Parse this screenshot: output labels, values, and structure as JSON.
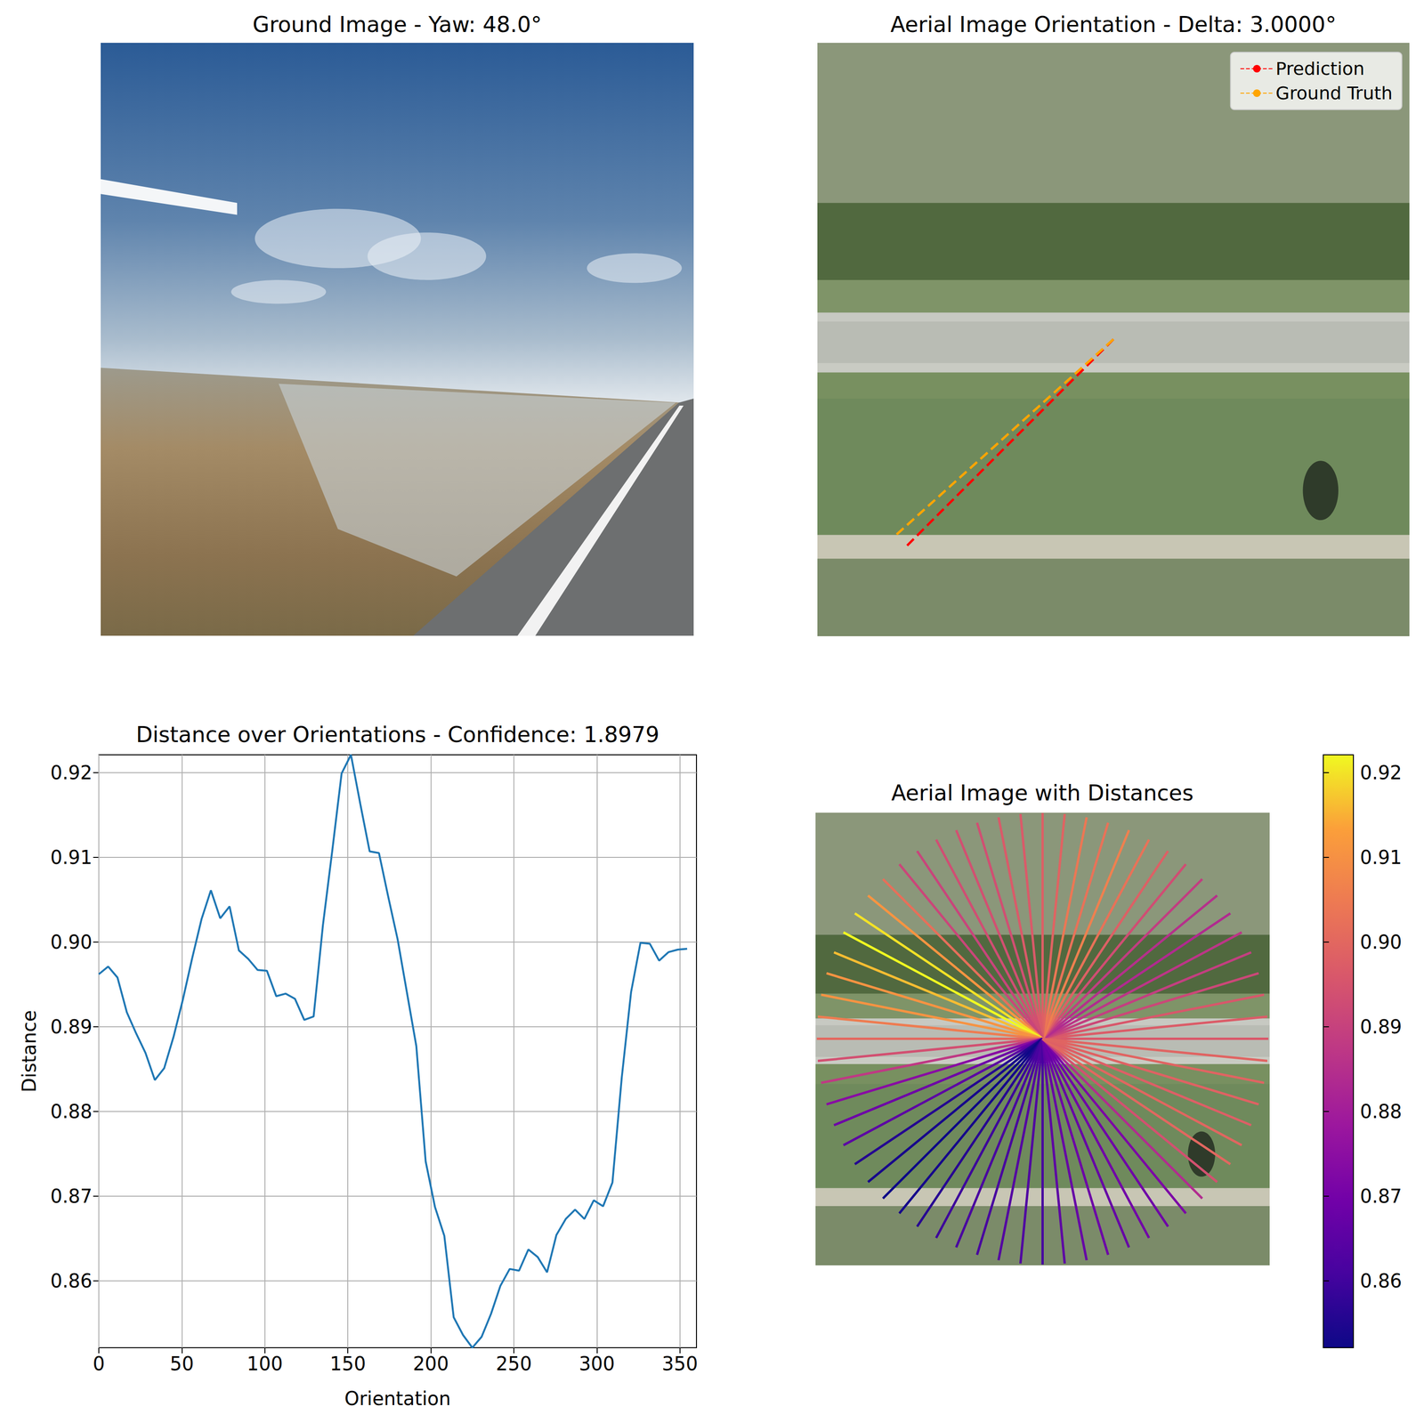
{
  "chart_data": [
    {
      "type": "image",
      "title": "Ground Image - Yaw: 48.0°"
    },
    {
      "type": "polar_line",
      "title": "Aerial Image Orientation - Delta: 3.0000°",
      "legend": "upper right",
      "series": [
        {
          "name": "Prediction",
          "color": "#ff0000",
          "line_style": "dashed",
          "values": [
            225
          ]
        },
        {
          "name": "Ground Truth",
          "color": "#ffa500",
          "line_style": "dashed",
          "values": [
            222
          ]
        }
      ]
    },
    {
      "type": "line",
      "title": "Distance over Orientations - Confidence: 1.8979",
      "xlabel": "Orientation",
      "ylabel": "Distance",
      "color": "#1f77b4",
      "grid": true,
      "xlim": [
        0,
        360
      ],
      "ylim": [
        0.8521,
        0.9221
      ],
      "xticks": [
        0,
        50,
        100,
        150,
        200,
        250,
        300,
        350
      ],
      "yticks": [
        0.86,
        0.87,
        0.88,
        0.89,
        {
          "value": 0.9,
          "label": "0.90"
        },
        0.91,
        0.92
      ],
      "x": [
        0,
        5.625,
        11.25,
        16.875,
        22.5,
        28.125,
        33.75,
        39.375,
        45,
        50.625,
        56.25,
        61.875,
        67.5,
        73.125,
        78.75,
        84.375,
        90,
        95.625,
        101.25,
        106.875,
        112.5,
        118.125,
        123.75,
        129.375,
        135,
        140.625,
        146.25,
        151.875,
        157.5,
        163.125,
        168.75,
        174.375,
        180,
        185.625,
        191.25,
        196.875,
        202.5,
        208.125,
        213.75,
        219.375,
        225,
        230.625,
        236.25,
        241.875,
        247.5,
        253.125,
        258.75,
        264.375,
        270,
        275.625,
        281.25,
        286.875,
        292.5,
        298.125,
        303.75,
        309.375,
        315,
        320.625,
        326.25,
        331.875,
        337.5,
        343.125,
        348.75,
        354.375
      ],
      "values": [
        0.8962,
        0.8971,
        0.8958,
        0.8917,
        0.8892,
        0.8869,
        0.8837,
        0.8851,
        0.8888,
        0.8932,
        0.8981,
        0.9027,
        0.9061,
        0.9028,
        0.9042,
        0.899,
        0.898,
        0.8967,
        0.8966,
        0.8936,
        0.8939,
        0.8933,
        0.8908,
        0.8912,
        0.902,
        0.9108,
        0.9199,
        0.9221,
        0.9163,
        0.9107,
        0.9105,
        0.9053,
        0.9003,
        0.894,
        0.8877,
        0.8741,
        0.8687,
        0.8653,
        0.8557,
        0.8536,
        0.8521,
        0.8534,
        0.8561,
        0.8594,
        0.8614,
        0.8612,
        0.8637,
        0.8628,
        0.861,
        0.8654,
        0.8673,
        0.8684,
        0.8673,
        0.8695,
        0.8688,
        0.8716,
        0.884,
        0.8941,
        0.8999,
        0.8998,
        0.8978,
        0.8988,
        0.8991,
        0.8992
      ]
    },
    {
      "type": "radial",
      "title": "Aerial Image with Distances",
      "colorbar_range": [
        0.8521,
        0.9221
      ],
      "colorbar_ticks": [
        0.86,
        0.87,
        0.88,
        0.89,
        {
          "value": 0.9,
          "label": "0.90"
        },
        0.91,
        0.92
      ],
      "x": [
        0,
        5.625,
        11.25,
        16.875,
        22.5,
        28.125,
        33.75,
        39.375,
        45,
        50.625,
        56.25,
        61.875,
        67.5,
        73.125,
        78.75,
        84.375,
        90,
        95.625,
        101.25,
        106.875,
        112.5,
        118.125,
        123.75,
        129.375,
        135,
        140.625,
        146.25,
        151.875,
        157.5,
        163.125,
        168.75,
        174.375,
        180,
        185.625,
        191.25,
        196.875,
        202.5,
        208.125,
        213.75,
        219.375,
        225,
        230.625,
        236.25,
        241.875,
        247.5,
        253.125,
        258.75,
        264.375,
        270,
        275.625,
        281.25,
        286.875,
        292.5,
        298.125,
        303.75,
        309.375,
        315,
        320.625,
        326.25,
        331.875,
        337.5,
        343.125,
        348.75,
        354.375
      ],
      "values": [
        0.8962,
        0.8971,
        0.8958,
        0.8917,
        0.8892,
        0.8869,
        0.8837,
        0.8851,
        0.8888,
        0.8932,
        0.8981,
        0.9027,
        0.9061,
        0.9028,
        0.9042,
        0.899,
        0.898,
        0.8967,
        0.8966,
        0.8936,
        0.8939,
        0.8933,
        0.8908,
        0.8912,
        0.902,
        0.9108,
        0.9199,
        0.9221,
        0.9163,
        0.9107,
        0.9105,
        0.9053,
        0.9003,
        0.894,
        0.8877,
        0.8741,
        0.8687,
        0.8653,
        0.8557,
        0.8536,
        0.8521,
        0.8534,
        0.8561,
        0.8594,
        0.8614,
        0.8612,
        0.8637,
        0.8628,
        0.861,
        0.8654,
        0.8673,
        0.8684,
        0.8673,
        0.8695,
        0.8688,
        0.8716,
        0.884,
        0.8941,
        0.8999,
        0.8998,
        0.8978,
        0.8988,
        0.8991,
        0.8992
      ]
    }
  ]
}
